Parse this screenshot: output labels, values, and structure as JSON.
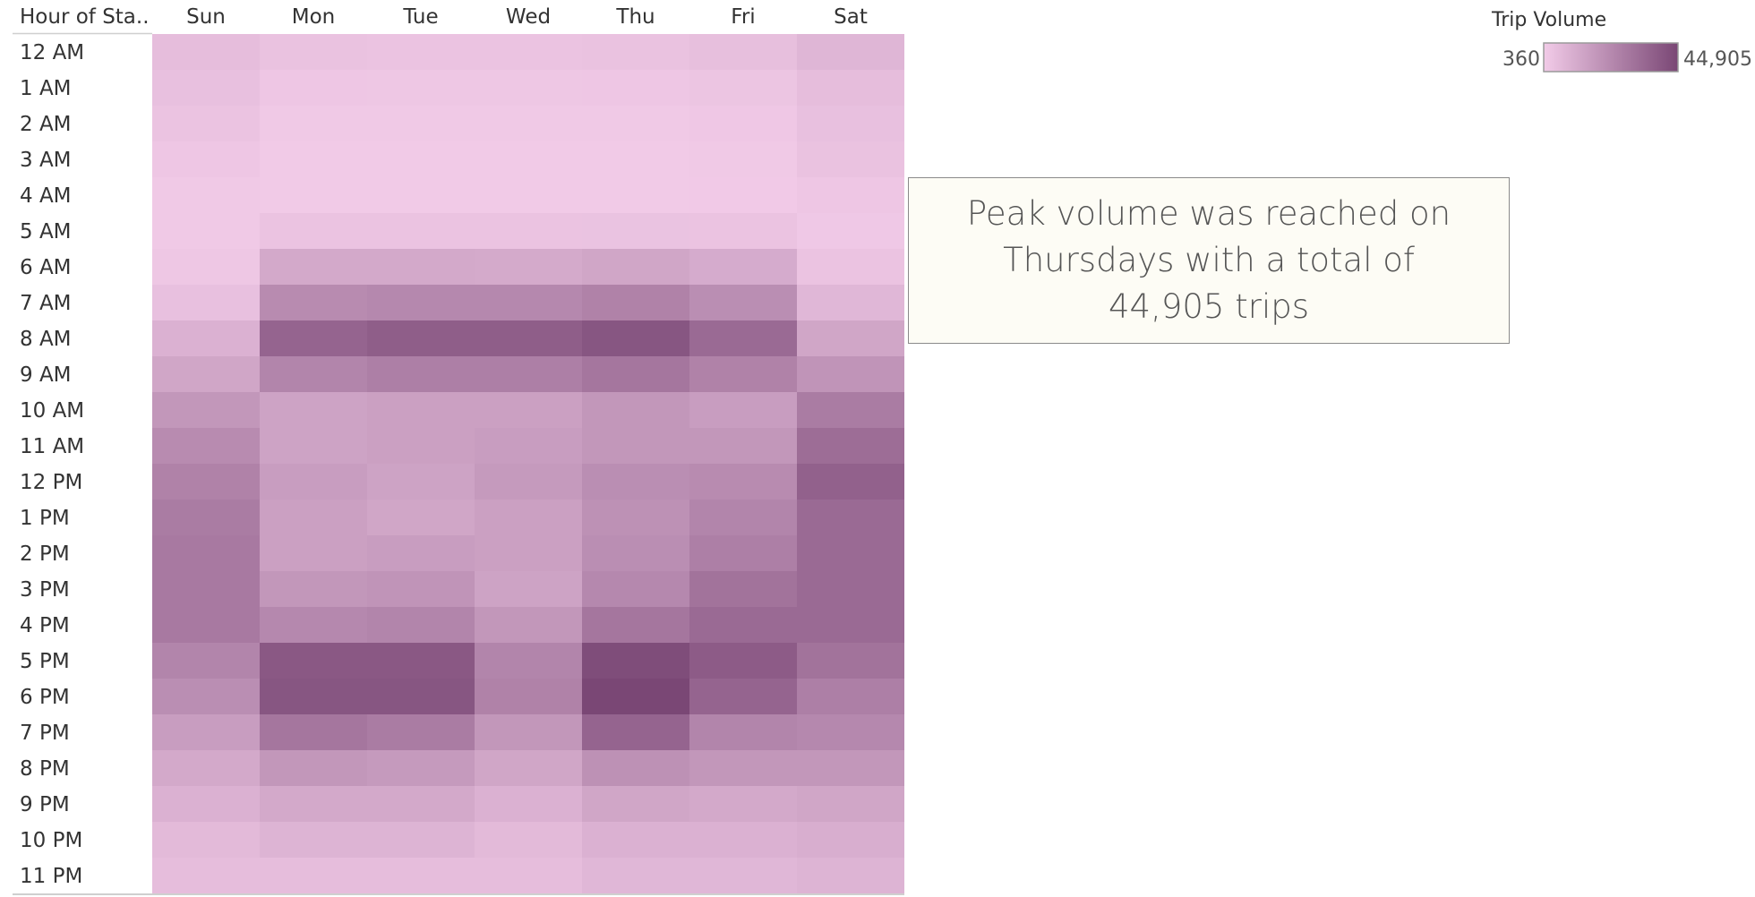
{
  "chart_data": {
    "type": "heatmap",
    "row_header": "Hour of Sta..",
    "columns": [
      "Sun",
      "Mon",
      "Tue",
      "Wed",
      "Thu",
      "Fri",
      "Sat"
    ],
    "rows": [
      "12 AM",
      "1 AM",
      "2 AM",
      "3 AM",
      "4 AM",
      "5 AM",
      "6 AM",
      "7 AM",
      "8 AM",
      "9 AM",
      "10 AM",
      "11 AM",
      "12 PM",
      "1 PM",
      "2 PM",
      "3 PM",
      "4 PM",
      "5 PM",
      "6 PM",
      "7 PM",
      "8 PM",
      "9 PM",
      "10 PM",
      "11 PM"
    ],
    "values": [
      [
        5000,
        3500,
        3000,
        3000,
        3500,
        4500,
        7500
      ],
      [
        4000,
        2000,
        1800,
        1800,
        2000,
        2500,
        5000
      ],
      [
        3000,
        1200,
        1100,
        1100,
        1200,
        1600,
        4000
      ],
      [
        2000,
        800,
        700,
        700,
        800,
        1000,
        3500
      ],
      [
        1200,
        700,
        600,
        600,
        700,
        900,
        2000
      ],
      [
        1000,
        3000,
        3000,
        3000,
        3200,
        3000,
        1300
      ],
      [
        1800,
        12000,
        12000,
        11500,
        13000,
        11000,
        3000
      ],
      [
        4000,
        22000,
        23000,
        23000,
        25000,
        21000,
        7000
      ],
      [
        9000,
        35000,
        37000,
        37000,
        40000,
        33000,
        13000
      ],
      [
        13000,
        24000,
        26000,
        26000,
        29000,
        25000,
        19000
      ],
      [
        18000,
        14000,
        15000,
        15000,
        18000,
        16000,
        27000
      ],
      [
        22000,
        14000,
        15000,
        16000,
        18000,
        18000,
        32000
      ],
      [
        25000,
        16000,
        14000,
        17000,
        21000,
        22000,
        36000
      ],
      [
        27000,
        15000,
        13000,
        15000,
        20000,
        24000,
        33000
      ],
      [
        28000,
        15000,
        16000,
        15000,
        21000,
        26000,
        33000
      ],
      [
        28000,
        18000,
        19000,
        14000,
        23000,
        30000,
        33000
      ],
      [
        28000,
        23000,
        24000,
        18000,
        29000,
        33000,
        33000
      ],
      [
        24000,
        39000,
        39000,
        24000,
        43000,
        38000,
        30000
      ],
      [
        21000,
        40000,
        40000,
        25000,
        44905,
        35000,
        26000
      ],
      [
        16000,
        29000,
        27000,
        18000,
        35000,
        24000,
        23000
      ],
      [
        12000,
        18000,
        17000,
        13000,
        20000,
        18000,
        18000
      ],
      [
        9000,
        12000,
        12000,
        9000,
        13000,
        12000,
        13000
      ],
      [
        6000,
        8000,
        8000,
        6000,
        9000,
        9000,
        10000
      ],
      [
        5000,
        5000,
        5000,
        5000,
        7000,
        7000,
        8000
      ]
    ],
    "legend": {
      "title": "Trip Volume",
      "min": 360,
      "max": 44905,
      "min_label": "360",
      "max_label": "44,905",
      "color_min": "#f2cbe8",
      "color_max": "#7a4775"
    }
  },
  "annotation": {
    "text": "Peak volume was reached on Thursdays with a total of 44,905 trips"
  }
}
